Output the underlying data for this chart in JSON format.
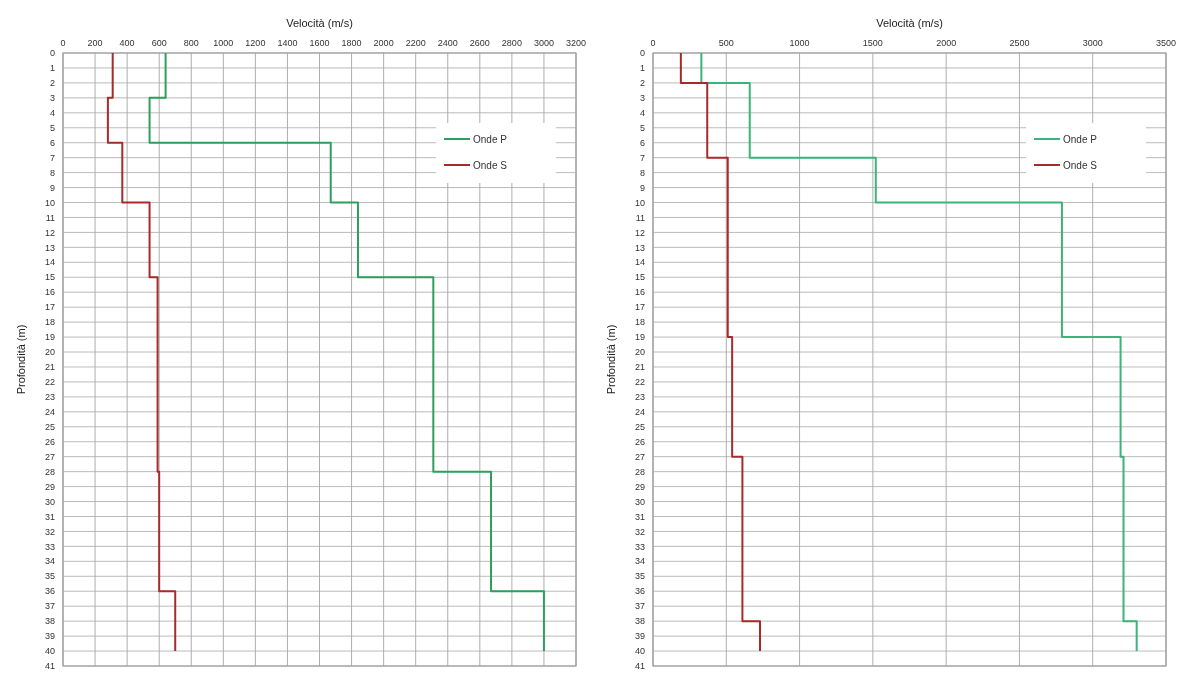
{
  "chart_data": [
    {
      "type": "line",
      "xlabel": "Velocità (m/s)",
      "ylabel": "Profondità (m)",
      "xlim": [
        0,
        3200
      ],
      "xticks": [
        0,
        200,
        400,
        600,
        800,
        1000,
        1200,
        1400,
        1600,
        1800,
        2000,
        2200,
        2400,
        2600,
        2800,
        3000,
        3200
      ],
      "ylim": [
        41,
        0
      ],
      "yticks": [
        0,
        1,
        2,
        3,
        4,
        5,
        6,
        7,
        8,
        9,
        10,
        11,
        12,
        13,
        14,
        15,
        16,
        17,
        18,
        19,
        20,
        21,
        22,
        23,
        24,
        25,
        26,
        27,
        28,
        29,
        30,
        31,
        32,
        33,
        34,
        35,
        36,
        37,
        38,
        39,
        40,
        41
      ],
      "grid": true,
      "legend": "top right",
      "series": [
        {
          "name": "Onde P",
          "color": "#2e9e5e",
          "x": [
            640,
            640,
            540,
            540,
            1670,
            1670,
            1840,
            1840,
            2310,
            2310,
            2670,
            2670,
            3000,
            3000
          ],
          "values": [
            0,
            3,
            3,
            6,
            6,
            10,
            10,
            15,
            15,
            28,
            28,
            36,
            36,
            40
          ]
        },
        {
          "name": "Onde S",
          "color": "#a62b2b",
          "x": [
            310,
            310,
            280,
            280,
            370,
            370,
            540,
            540,
            590,
            590,
            600,
            600,
            700,
            700
          ],
          "values": [
            0,
            3,
            3,
            6,
            6,
            10,
            10,
            15,
            15,
            28,
            28,
            36,
            36,
            40
          ]
        }
      ]
    },
    {
      "type": "line",
      "xlabel": "Velocità (m/s)",
      "ylabel": "Profondità (m)",
      "xlim": [
        0,
        3500
      ],
      "xticks": [
        0,
        500,
        1000,
        1500,
        2000,
        2500,
        3000,
        3500
      ],
      "ylim": [
        41,
        0
      ],
      "yticks": [
        0,
        1,
        2,
        3,
        4,
        5,
        6,
        7,
        8,
        9,
        10,
        11,
        12,
        13,
        14,
        15,
        16,
        17,
        18,
        19,
        20,
        21,
        22,
        23,
        24,
        25,
        26,
        27,
        28,
        29,
        30,
        31,
        32,
        33,
        34,
        35,
        36,
        37,
        38,
        39,
        40,
        41
      ],
      "grid": true,
      "legend": "top right",
      "series": [
        {
          "name": "Onde P",
          "color": "#3cb37a",
          "x": [
            330,
            330,
            660,
            660,
            1520,
            1520,
            2790,
            2790,
            3190,
            3190,
            3210,
            3210,
            3300,
            3300
          ],
          "values": [
            0,
            2,
            2,
            7,
            7,
            10,
            10,
            19,
            19,
            27,
            27,
            38,
            38,
            40
          ]
        },
        {
          "name": "Onde S",
          "color": "#a62b2b",
          "x": [
            190,
            190,
            370,
            370,
            510,
            510,
            540,
            540,
            610,
            610,
            730,
            730
          ],
          "values": [
            0,
            2,
            2,
            7,
            7,
            19,
            19,
            27,
            27,
            38,
            38,
            40
          ]
        }
      ]
    }
  ]
}
